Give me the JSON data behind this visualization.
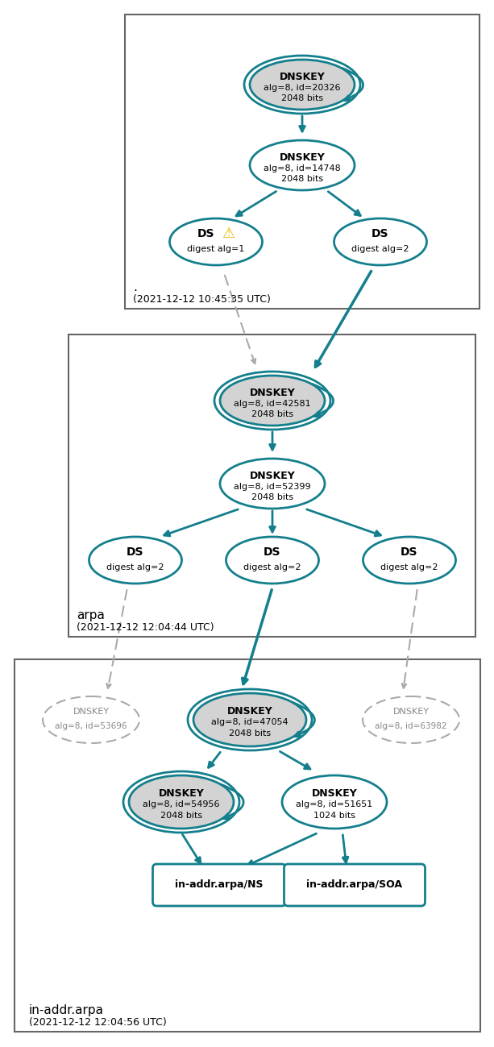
{
  "teal": "#147F8C",
  "gray_fill": "#D3D3D3",
  "dashed_gray": "#AAAAAA",
  "box_edge": "#666666",
  "zone1_label": ".",
  "zone1_time": "(2021-12-12 10:45:35 UTC)",
  "zone2_label": "arpa",
  "zone2_time": "(2021-12-12 12:04:44 UTC)",
  "zone3_label": "in-addr.arpa",
  "zone3_time": "(2021-12-12 12:04:56 UTC)"
}
